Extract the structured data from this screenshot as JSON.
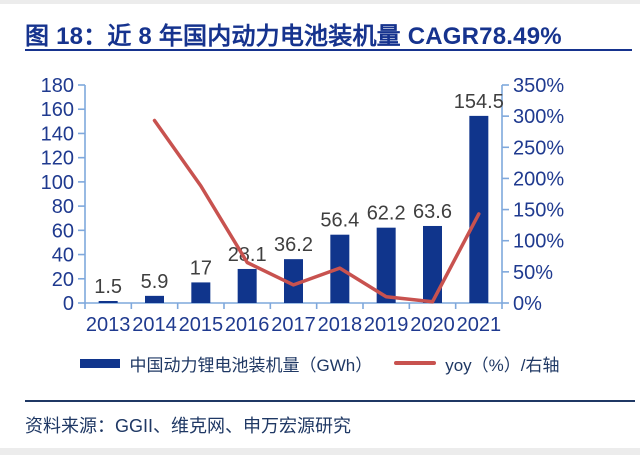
{
  "header": {
    "title": "图 18：近 8 年国内动力电池装机量 CAGR78.49%"
  },
  "legend": {
    "items": [
      {
        "label": "中国动力锂电池装机量（GWh）",
        "swatch": "bar",
        "color": "#10358c"
      },
      {
        "label": "yoy（%）/右轴",
        "swatch": "line",
        "color": "#c8524f"
      }
    ]
  },
  "footer": {
    "source": "资料来源：GGII、维克网、申万宏源研究"
  },
  "colors": {
    "bar": "#10358c",
    "line": "#c8524f",
    "axis_line": "#7fa8dc",
    "axis_text": "#1f3a8f",
    "data_label": "#3f3f3f",
    "title_accent": "#16338e",
    "footer_text": "#1f3864"
  },
  "chart_data": {
    "type": "bar+line combo",
    "categories": [
      "2013",
      "2014",
      "2015",
      "2016",
      "2017",
      "2018",
      "2019",
      "2020",
      "2021"
    ],
    "series": [
      {
        "name": "中国动力锂电池装机量（GWh）",
        "type": "bar",
        "axis": "left",
        "values": [
          1.5,
          5.9,
          17,
          28.1,
          36.2,
          56.4,
          62.2,
          63.6,
          154.5
        ],
        "data_labels": [
          "1.5",
          "5.9",
          "17",
          "28.1",
          "36.2",
          "56.4",
          "62.2",
          "63.6",
          "154.5"
        ]
      },
      {
        "name": "yoy（%）/右轴",
        "type": "line",
        "axis": "right",
        "values": [
          null,
          293,
          188,
          65,
          29,
          56,
          10,
          2,
          143
        ]
      }
    ],
    "left_axis": {
      "min": 0,
      "max": 180,
      "step": 20,
      "ticks": [
        "180",
        "160",
        "140",
        "120",
        "100",
        "80",
        "60",
        "40",
        "20",
        "0"
      ]
    },
    "right_axis": {
      "min": 0,
      "max": 350,
      "step": 50,
      "ticks": [
        "350%",
        "300%",
        "250%",
        "200%",
        "150%",
        "100%",
        "50%",
        "0%"
      ]
    },
    "grid": "off",
    "legend_position": "bottom-center"
  }
}
